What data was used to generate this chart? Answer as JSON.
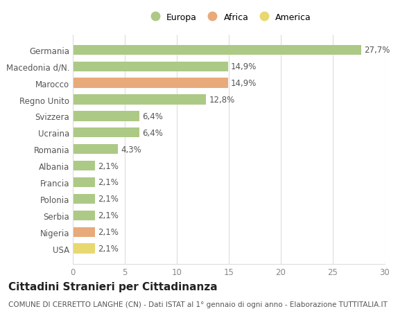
{
  "countries": [
    "Germania",
    "Macedonia d/N.",
    "Marocco",
    "Regno Unito",
    "Svizzera",
    "Ucraina",
    "Romania",
    "Albania",
    "Francia",
    "Polonia",
    "Serbia",
    "Nigeria",
    "USA"
  ],
  "values": [
    27.7,
    14.9,
    14.9,
    12.8,
    6.4,
    6.4,
    4.3,
    2.1,
    2.1,
    2.1,
    2.1,
    2.1,
    2.1
  ],
  "labels": [
    "27,7%",
    "14,9%",
    "14,9%",
    "12,8%",
    "6,4%",
    "6,4%",
    "4,3%",
    "2,1%",
    "2,1%",
    "2,1%",
    "2,1%",
    "2,1%",
    "2,1%"
  ],
  "colors": [
    "#adc986",
    "#adc986",
    "#e8aa7a",
    "#adc986",
    "#adc986",
    "#adc986",
    "#adc986",
    "#adc986",
    "#adc986",
    "#adc986",
    "#adc986",
    "#e8aa7a",
    "#e8d870"
  ],
  "legend_labels": [
    "Europa",
    "Africa",
    "America"
  ],
  "legend_colors": [
    "#adc986",
    "#e8aa7a",
    "#e8d870"
  ],
  "title": "Cittadini Stranieri per Cittadinanza",
  "subtitle": "COMUNE DI CERRETTO LANGHE (CN) - Dati ISTAT al 1° gennaio di ogni anno - Elaborazione TUTTITALIA.IT",
  "xlim": [
    0,
    30
  ],
  "xticks": [
    0,
    5,
    10,
    15,
    20,
    25,
    30
  ],
  "background_color": "#ffffff",
  "grid_color": "#dddddd",
  "bar_height": 0.6,
  "label_fontsize": 8.5,
  "tick_fontsize": 8.5,
  "title_fontsize": 11,
  "subtitle_fontsize": 7.5
}
